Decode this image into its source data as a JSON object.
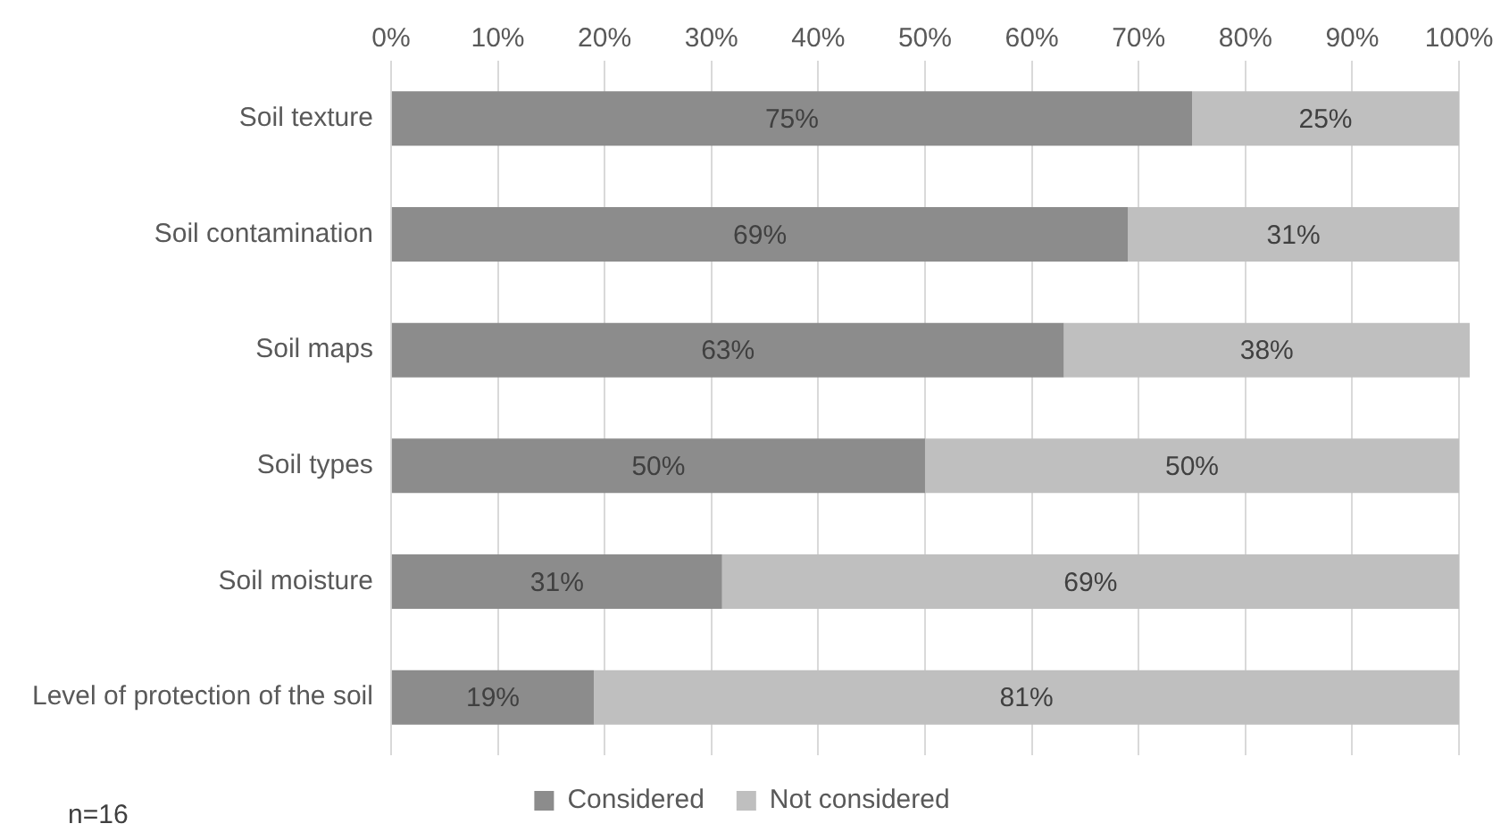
{
  "chart_data": {
    "type": "bar",
    "orientation": "horizontal",
    "stacked": true,
    "categories": [
      "Soil texture",
      "Soil contamination",
      "Soil maps",
      "Soil types",
      "Soil moisture",
      "Level of protection of the soil"
    ],
    "series": [
      {
        "name": "Considered",
        "color": "#8c8c8c",
        "values": [
          75,
          69,
          63,
          50,
          31,
          19
        ],
        "value_labels": [
          "75%",
          "69%",
          "63%",
          "50%",
          "31%",
          "19%"
        ]
      },
      {
        "name": "Not considered",
        "color": "#bfbfbf",
        "values": [
          25,
          31,
          38,
          50,
          69,
          81
        ],
        "value_labels": [
          "25%",
          "31%",
          "38%",
          "50%",
          "69%",
          "81%"
        ]
      }
    ],
    "xlim": [
      0,
      101
    ],
    "xticks": [
      {
        "value": 0,
        "label": "0%"
      },
      {
        "value": 10,
        "label": "10%"
      },
      {
        "value": 20,
        "label": "20%"
      },
      {
        "value": 30,
        "label": "30%"
      },
      {
        "value": 40,
        "label": "40%"
      },
      {
        "value": 50,
        "label": "50%"
      },
      {
        "value": 60,
        "label": "60%"
      },
      {
        "value": 70,
        "label": "70%"
      },
      {
        "value": 80,
        "label": "80%"
      },
      {
        "value": 90,
        "label": "90%"
      },
      {
        "value": 100,
        "label": "100%"
      }
    ],
    "grid": "x",
    "legend": "bottom",
    "annotations": [
      "n=16"
    ]
  }
}
